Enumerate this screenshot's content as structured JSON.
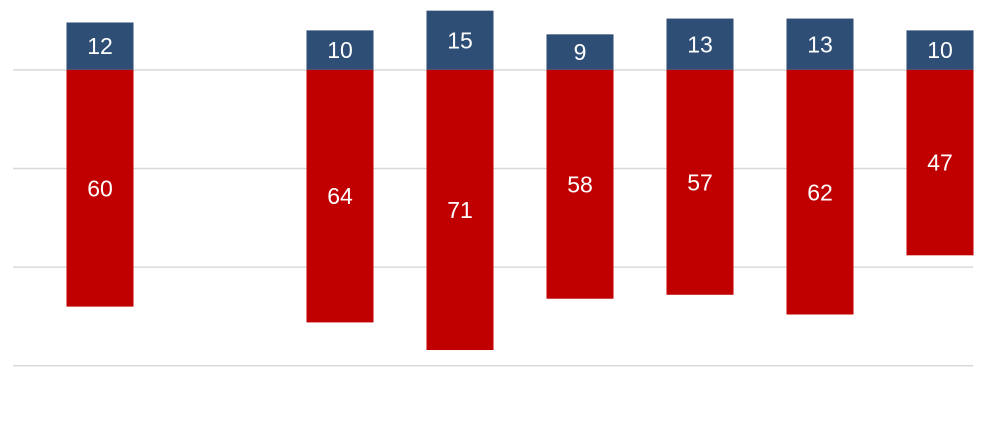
{
  "chart_data": {
    "type": "bar",
    "stacked": true,
    "categories": [
      null,
      null,
      null,
      null,
      null,
      null,
      null,
      null
    ],
    "series": [
      {
        "color": "#2e4e76",
        "values": [
          12,
          null,
          10,
          15,
          9,
          13,
          13,
          10
        ]
      },
      {
        "color": "#c00000",
        "values": [
          -60,
          null,
          -64,
          -71,
          -58,
          -57,
          -62,
          -47
        ],
        "value_labels": [
          "60",
          null,
          "64",
          "71",
          "58",
          "57",
          "62",
          "47"
        ]
      }
    ],
    "ylim": [
      -90,
      17.7
    ],
    "yticks": [
      0,
      -25,
      -50,
      -75
    ],
    "grid": true
  }
}
